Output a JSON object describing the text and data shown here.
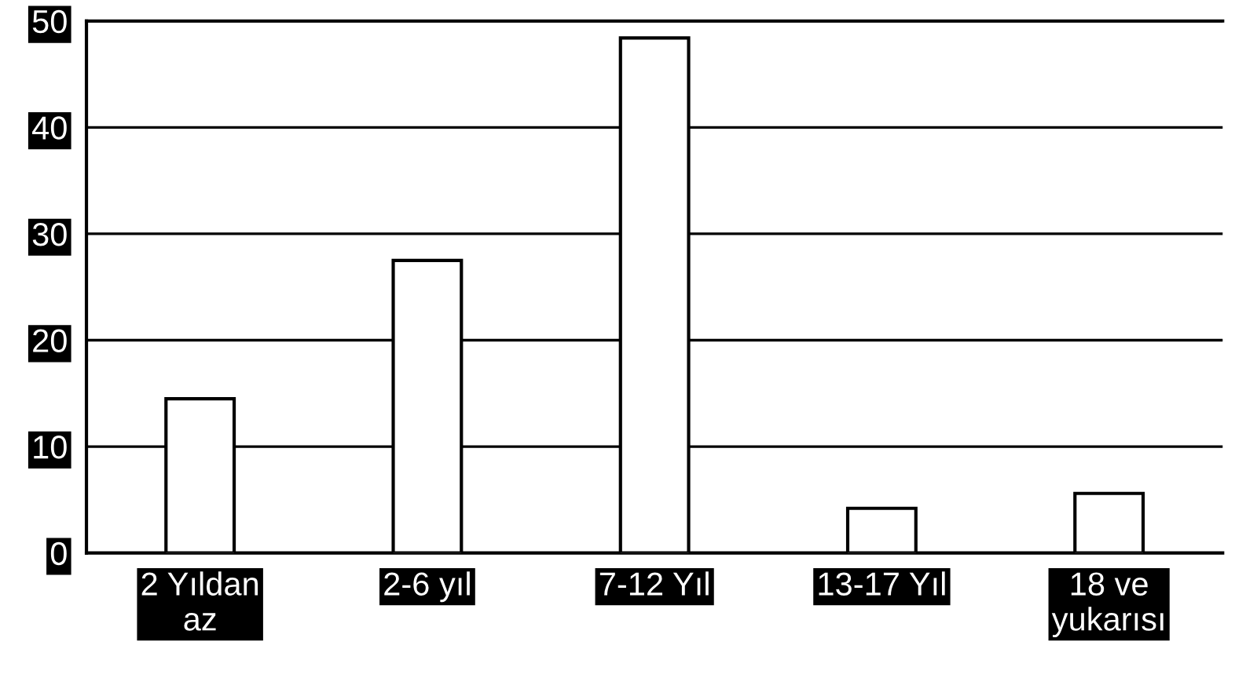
{
  "chart_data": {
    "type": "bar",
    "categories": [
      "2 Yıldan\naz",
      "2-6 yıl",
      "7-12 Yıl",
      "13-17 Yıl",
      "18 ve\nyukarısı"
    ],
    "values": [
      14.5,
      27.5,
      48.4,
      4.2,
      5.6
    ],
    "color": "#ffffff",
    "ylim": [
      0,
      50
    ],
    "yticks": [
      0,
      10,
      20,
      30,
      40,
      50
    ],
    "grid": "y"
  }
}
